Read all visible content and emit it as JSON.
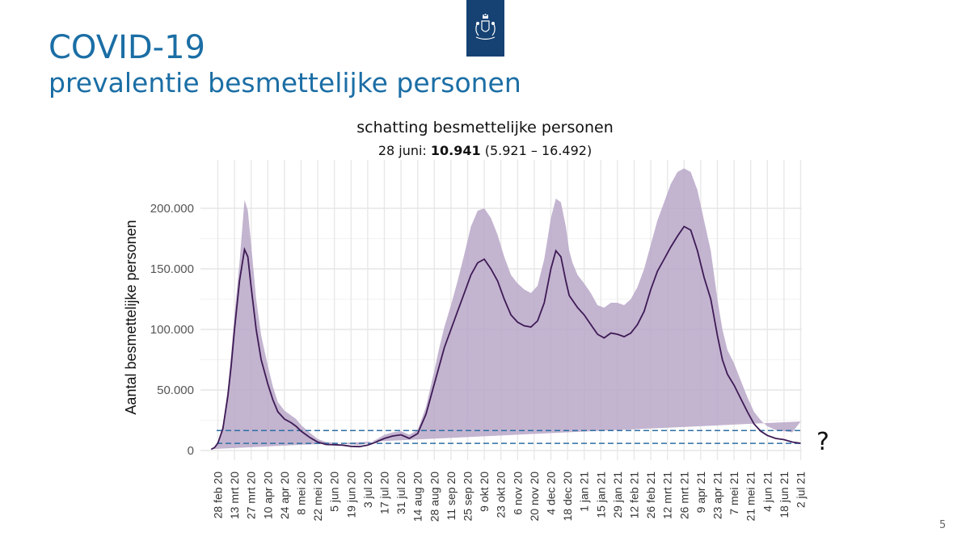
{
  "slide": {
    "title": "COVID-19",
    "subtitle": "prevalentie besmettelijke personen",
    "page_number": "5",
    "logo_icon": "coat-of-arms-icon"
  },
  "colors": {
    "title": "#1b6ea5",
    "band": "#b9a7c8",
    "line": "#3e1a55",
    "reference_lines": "#2e6ea3",
    "logo_background": "#154273"
  },
  "chart_data": {
    "type": "line",
    "title": "schatting besmettelijke personen",
    "subtitle_prefix": "28 juni: ",
    "subtitle_value": "10.941",
    "subtitle_range": " (5.921 – 16.492)",
    "ylabel": "Aantal besmettelijke personen",
    "xlabel": "",
    "ylim": [
      -8000,
      240000
    ],
    "y_ticks": [
      0,
      50000,
      100000,
      150000,
      200000
    ],
    "y_tick_labels": [
      "0",
      "50.000",
      "100.000",
      "150.000",
      "200.000"
    ],
    "x_tick_labels": [
      "28 feb 20",
      "13 mrt 20",
      "27 mrt 20",
      "10 apr 20",
      "24 apr 20",
      "8 mei 20",
      "22 mei 20",
      "5 jun 20",
      "19 jun 20",
      "3 jul 20",
      "17 jul 20",
      "31 jul 20",
      "14 aug 20",
      "28 aug 20",
      "11 sep 20",
      "25 sep 20",
      "9 okt 20",
      "23 okt 20",
      "6 nov 20",
      "20 nov 20",
      "4 dec 20",
      "18 dec 20",
      "1 jan 21",
      "15 jan 21",
      "29 jan 21",
      "12 feb 21",
      "26 feb 21",
      "12 mrt 21",
      "26 mrt 21",
      "9 apr 21",
      "23 apr 21",
      "7 mei 21",
      "21 mei 21",
      "4 jun 21",
      "18 jun 21",
      "2 jul 21"
    ],
    "grid": true,
    "reference_lines": [
      5921,
      16492
    ],
    "annotation": "?",
    "series": [
      {
        "x_week_index": [
          -0.4,
          -0.2,
          0,
          0.3,
          0.6,
          0.8,
          1,
          1.3,
          1.6,
          1.8,
          2,
          2.3,
          2.6,
          3,
          3.3,
          3.6,
          4,
          4.4,
          4.7,
          5,
          5.5,
          6,
          6.5,
          7,
          7.5,
          8,
          8.5,
          9,
          9.5,
          10,
          10.5,
          11,
          11.5,
          12,
          12.5,
          13,
          13.3,
          13.6,
          14,
          14.4,
          14.8,
          15.2,
          15.6,
          16,
          16.4,
          16.8,
          17.2,
          17.6,
          18,
          18.4,
          18.8,
          19.2,
          19.6,
          20,
          20.3,
          20.6,
          20.9,
          21.1,
          21.3,
          21.6,
          22,
          22.4,
          22.8,
          23.2,
          23.6,
          24,
          24.4,
          24.8,
          25.2,
          25.6,
          26,
          26.4,
          26.8,
          27.2,
          27.6,
          28,
          28.4,
          28.8,
          29.2,
          29.6,
          30,
          30.3,
          30.6,
          31,
          31.4,
          31.8,
          32.2,
          32.6,
          33,
          33.5,
          34,
          34.5,
          35,
          35.3,
          35.6
        ],
        "mean": [
          1000,
          2500,
          6000,
          18000,
          45000,
          70000,
          100000,
          140000,
          166000,
          160000,
          135000,
          100000,
          75000,
          55000,
          42000,
          32000,
          26000,
          23000,
          20000,
          16000,
          11000,
          7000,
          5000,
          4800,
          4500,
          3500,
          3200,
          4500,
          7000,
          10000,
          12000,
          13000,
          10000,
          14000,
          30000,
          55000,
          70000,
          85000,
          100000,
          115000,
          130000,
          145000,
          155000,
          158000,
          150000,
          140000,
          125000,
          112000,
          106000,
          103000,
          102000,
          107000,
          122000,
          150000,
          165000,
          160000,
          140000,
          128000,
          124000,
          118000,
          112000,
          104000,
          96000,
          93000,
          97000,
          96000,
          94000,
          97000,
          104000,
          115000,
          133000,
          148000,
          158000,
          168000,
          177000,
          185000,
          182000,
          165000,
          143000,
          125000,
          95000,
          75000,
          63000,
          54000,
          43000,
          32000,
          22000,
          16000,
          12500,
          10000,
          9000,
          7000,
          6000
        ],
        "lower": [
          800,
          2000,
          5000,
          15000,
          38000,
          62000,
          88000,
          125000,
          126000,
          120000,
          100000,
          78000,
          58000,
          43000,
          33000,
          25000,
          21000,
          18000,
          15000,
          12000,
          8000,
          5000,
          3500,
          3500,
          3200,
          2500,
          2300,
          3500,
          5000,
          8000,
          10000,
          11000,
          8000,
          11000,
          24000,
          44000,
          57000,
          70000,
          83000,
          95000,
          108000,
          112000,
          110000,
          100000,
          96000,
          90000,
          86000,
          83000,
          80000,
          78000,
          76000,
          80000,
          90000,
          115000,
          125000,
          120000,
          90000,
          87000,
          86000,
          84000,
          80000,
          75000,
          70000,
          68000,
          71000,
          70000,
          69000,
          70000,
          78000,
          88000,
          102000,
          112000,
          117000,
          126000,
          134000,
          137000,
          128000,
          112000,
          95000,
          80000,
          65000,
          52000,
          45000,
          38000,
          30000,
          22000,
          14000,
          9000,
          6000,
          3500,
          3000,
          2500,
          2000
        ],
        "upper": [
          1200,
          3000,
          7000,
          21000,
          52000,
          80000,
          112000,
          155000,
          207000,
          198000,
          170000,
          125000,
          95000,
          70000,
          53000,
          40000,
          33000,
          29000,
          26000,
          21000,
          15000,
          9500,
          7000,
          6500,
          6000,
          5000,
          4500,
          6000,
          9000,
          13000,
          15000,
          16000,
          13000,
          17000,
          36000,
          66000,
          85000,
          102000,
          120000,
          140000,
          162000,
          185000,
          198000,
          200000,
          192000,
          178000,
          160000,
          145000,
          138000,
          133000,
          130000,
          136000,
          158000,
          192000,
          208000,
          205000,
          185000,
          165000,
          155000,
          145000,
          138000,
          130000,
          120000,
          118000,
          122000,
          122000,
          120000,
          125000,
          135000,
          150000,
          170000,
          190000,
          205000,
          220000,
          230000,
          233000,
          230000,
          215000,
          190000,
          165000,
          125000,
          100000,
          83000,
          72000,
          58000,
          44000,
          32000,
          25000,
          20000,
          17000,
          16000,
          15000,
          24000
        ]
      }
    ]
  }
}
